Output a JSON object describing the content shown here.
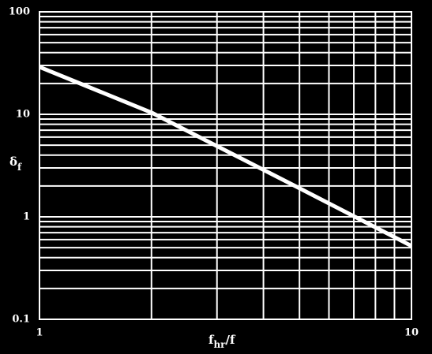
{
  "chart_data": {
    "type": "line",
    "log_x": true,
    "log_y": true,
    "grid": true,
    "background": "#000000",
    "x": [
      1,
      2,
      5,
      10
    ],
    "series": [
      {
        "color": "#ffffff",
        "values": [
          29,
          10.4,
          1.9,
          0.52
        ]
      }
    ],
    "xlim": [
      1,
      10
    ],
    "ylim": [
      0.1,
      100
    ],
    "xticks": [
      1,
      10
    ],
    "yticks": [
      0.1,
      1,
      10,
      100
    ],
    "xminor_ticks": [
      2,
      3,
      4,
      5,
      6,
      7,
      8,
      9
    ],
    "yminor_ticks": [
      0.2,
      0.3,
      0.4,
      0.5,
      0.6,
      0.7,
      0.8,
      0.9,
      2,
      3,
      4,
      5,
      6,
      7,
      8,
      9,
      20,
      30,
      40,
      50,
      60,
      70,
      80,
      90
    ],
    "ylabel": {
      "symbol": "δ",
      "subscript": "f"
    },
    "xlabel": {
      "symbol": "f",
      "subscript": "hr",
      "rest": "/f"
    }
  }
}
